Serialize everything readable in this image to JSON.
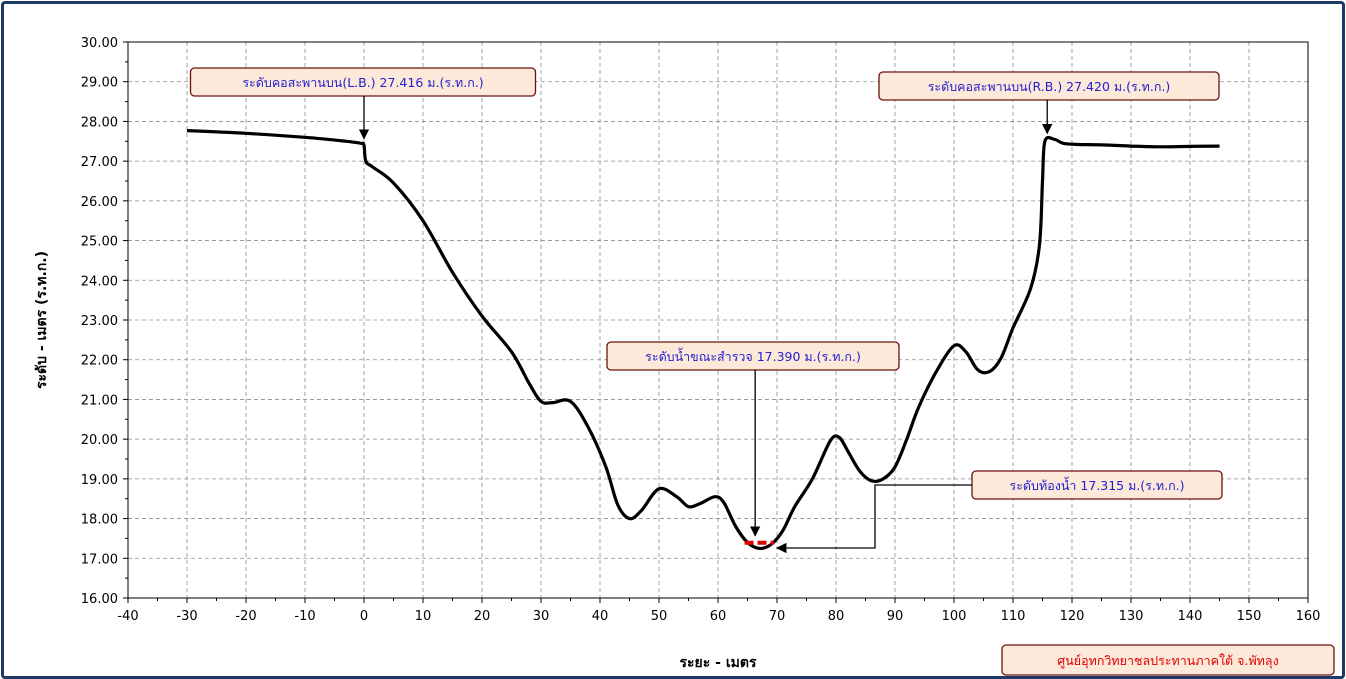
{
  "chart_data": {
    "type": "line",
    "xlabel": "ระยะ - เมตร",
    "ylabel": "ระดับ - เมตร (ร.ท.ก.)",
    "xlim": [
      -40,
      160
    ],
    "ylim": [
      16,
      30
    ],
    "x_ticks": [
      "-40",
      "-30",
      "-20",
      "-10",
      "0",
      "10",
      "20",
      "30",
      "40",
      "50",
      "60",
      "70",
      "80",
      "90",
      "100",
      "110",
      "120",
      "130",
      "140",
      "150",
      "160"
    ],
    "y_ticks": [
      "16.00",
      "17.00",
      "18.00",
      "19.00",
      "20.00",
      "21.00",
      "22.00",
      "23.00",
      "24.00",
      "25.00",
      "26.00",
      "27.00",
      "28.00",
      "29.00",
      "30.00"
    ],
    "grid": true,
    "series": [
      {
        "color": "#000000",
        "points": [
          [
            -30,
            27.77
          ],
          [
            -20,
            27.7
          ],
          [
            -10,
            27.6
          ],
          [
            -3,
            27.5
          ],
          [
            -0.5,
            27.45
          ],
          [
            0,
            27.4
          ],
          [
            0.3,
            27.0
          ],
          [
            1.5,
            26.85
          ],
          [
            5,
            26.45
          ],
          [
            10,
            25.5
          ],
          [
            15,
            24.2
          ],
          [
            20,
            23.1
          ],
          [
            25,
            22.2
          ],
          [
            28,
            21.4
          ],
          [
            30,
            20.95
          ],
          [
            32,
            20.92
          ],
          [
            35,
            20.95
          ],
          [
            38,
            20.3
          ],
          [
            41,
            19.3
          ],
          [
            43,
            18.35
          ],
          [
            45,
            18.0
          ],
          [
            47,
            18.2
          ],
          [
            50,
            18.75
          ],
          [
            53,
            18.55
          ],
          [
            55,
            18.3
          ],
          [
            57,
            18.38
          ],
          [
            59.5,
            18.55
          ],
          [
            61,
            18.4
          ],
          [
            63,
            17.8
          ],
          [
            65,
            17.4
          ],
          [
            67,
            17.25
          ],
          [
            69,
            17.35
          ],
          [
            71,
            17.7
          ],
          [
            73,
            18.3
          ],
          [
            76,
            19.0
          ],
          [
            79,
            19.95
          ],
          [
            80.5,
            20.05
          ],
          [
            82,
            19.7
          ],
          [
            84,
            19.2
          ],
          [
            86,
            18.95
          ],
          [
            88,
            19.0
          ],
          [
            90,
            19.3
          ],
          [
            92,
            20.0
          ],
          [
            94,
            20.8
          ],
          [
            97,
            21.7
          ],
          [
            100,
            22.35
          ],
          [
            102,
            22.2
          ],
          [
            104,
            21.75
          ],
          [
            106,
            21.7
          ],
          [
            108,
            22.05
          ],
          [
            110,
            22.8
          ],
          [
            113,
            23.8
          ],
          [
            114.5,
            24.9
          ],
          [
            115,
            26.5
          ],
          [
            115.4,
            27.5
          ],
          [
            117,
            27.55
          ],
          [
            118.5,
            27.45
          ],
          [
            121,
            27.42
          ],
          [
            125,
            27.41
          ],
          [
            130,
            27.38
          ],
          [
            135,
            27.36
          ],
          [
            140,
            27.37
          ],
          [
            145,
            27.38
          ]
        ]
      }
    ],
    "water_level": {
      "label": "ระดับน้ำขณะสำรวจ 17.390 ม.(ร.ท.ก.)",
      "value": 17.39,
      "x_range": [
        64.5,
        69.5
      ],
      "color": "#e00000"
    },
    "annotations": [
      {
        "text": "ระดับคอสะพานบน(L.B.) 27.416 ม.(ร.ท.ก.)",
        "target_x": 0,
        "target_y": 27.416
      },
      {
        "text": "ระดับคอสะพานบน(R.B.) 27.420 ม.(ร.ท.ก.)",
        "target_x": 115.8,
        "target_y": 27.6
      },
      {
        "text": "ระดับน้ำขณะสำรวจ 17.390 ม.(ร.ท.ก.)",
        "target_x": 66.3,
        "target_y": 17.57
      },
      {
        "text": "ระดับท้องน้ำ 17.315 ม.(ร.ท.ก.)",
        "target_x": 69,
        "target_y": 17.25
      }
    ]
  },
  "footer": {
    "text": "ศูนย์อุทกวิทยาชลประทานภาคใต้ จ.พัทลุง"
  }
}
